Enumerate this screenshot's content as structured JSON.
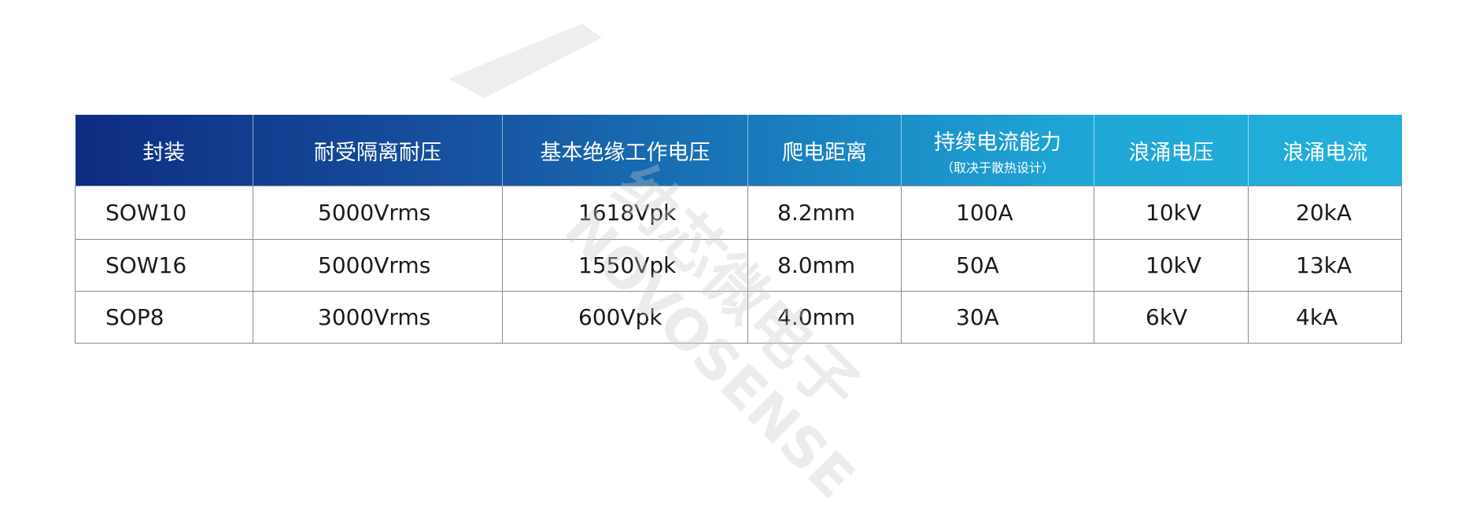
{
  "table": {
    "headers": [
      {
        "label": "封装"
      },
      {
        "label": "耐受隔离耐压"
      },
      {
        "label": "基本绝缘工作电压"
      },
      {
        "label": "爬电距离"
      },
      {
        "label": "持续电流能力",
        "sub": "（取决于散热设计）"
      },
      {
        "label": "浪涌电压"
      },
      {
        "label": "浪涌电流"
      }
    ],
    "rows": [
      [
        "SOW10",
        "5000Vrms",
        "1618Vpk",
        "8.2mm",
        "100A",
        "10kV",
        "20kA"
      ],
      [
        "SOW16",
        "5000Vrms",
        "1550Vpk",
        "8.0mm",
        "50A",
        "10kV",
        "13kA"
      ],
      [
        "SOP8",
        "3000Vrms",
        "600Vpk",
        "4.0mm",
        "30A",
        "6kV",
        "4kA"
      ]
    ]
  },
  "watermark": {
    "brand": "NOVOSENSE",
    "cn": "纳芯微电子"
  },
  "colors": {
    "header_start": "#0e2c82",
    "header_end": "#22b0db",
    "border": "#8a8a8a"
  }
}
